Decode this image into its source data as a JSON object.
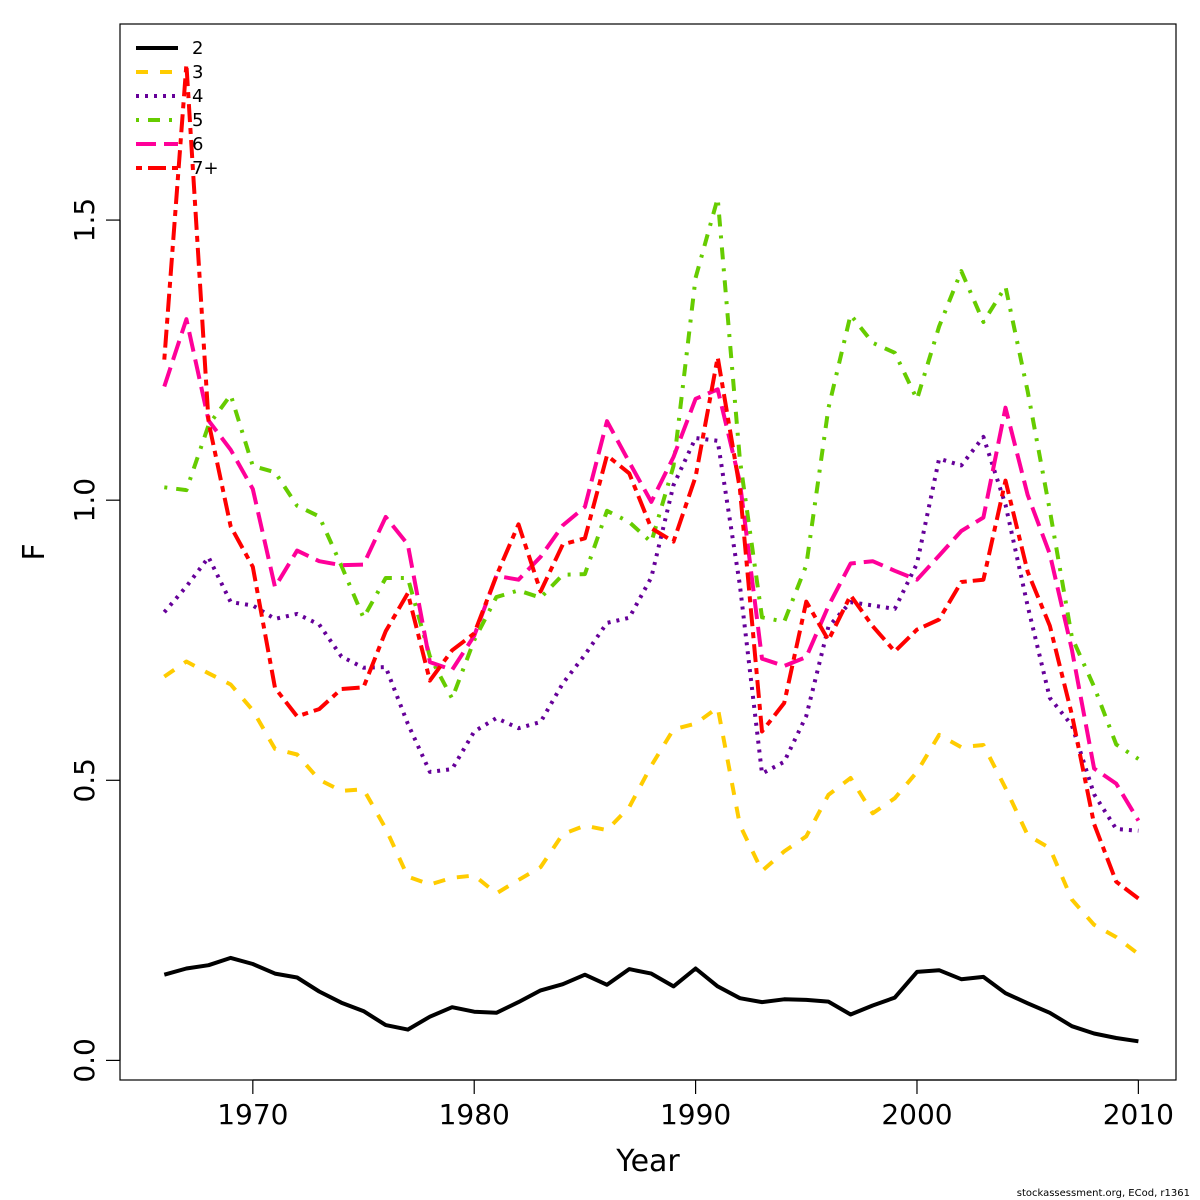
{
  "chart_data": {
    "type": "line",
    "title": "",
    "xlabel": "Year",
    "ylabel": "F",
    "xlim": [
      1964,
      2011.7
    ],
    "ylim": [
      -0.035,
      1.85
    ],
    "x_ticks": [
      1970,
      1980,
      1990,
      2000,
      2010
    ],
    "y_ticks": [
      0.0,
      0.5,
      1.0,
      1.5
    ],
    "x_tick_labels": [
      "1970",
      "1980",
      "1990",
      "2000",
      "2010"
    ],
    "y_tick_labels": [
      "0.0",
      "0.5",
      "1.0",
      "1.5"
    ],
    "grid": false,
    "legend_position": "top-left",
    "x": [
      1966,
      1967,
      1968,
      1969,
      1970,
      1971,
      1972,
      1973,
      1974,
      1975,
      1976,
      1977,
      1978,
      1979,
      1980,
      1981,
      1982,
      1983,
      1984,
      1985,
      1986,
      1987,
      1988,
      1989,
      1990,
      1991,
      1992,
      1993,
      1994,
      1995,
      1996,
      1997,
      1998,
      1999,
      2000,
      2001,
      2002,
      2003,
      2004,
      2005,
      2006,
      2007,
      2008,
      2009,
      2010
    ],
    "series": [
      {
        "name": "2",
        "color": "#000000",
        "dash": "solid",
        "values": [
          0.153,
          0.164,
          0.17,
          0.183,
          0.172,
          0.155,
          0.148,
          0.123,
          0.103,
          0.088,
          0.063,
          0.055,
          0.078,
          0.095,
          0.087,
          0.085,
          0.104,
          0.125,
          0.136,
          0.153,
          0.135,
          0.163,
          0.155,
          0.132,
          0.164,
          0.132,
          0.111,
          0.104,
          0.109,
          0.108,
          0.105,
          0.082,
          0.098,
          0.112,
          0.158,
          0.161,
          0.145,
          0.149,
          0.12,
          0.102,
          0.085,
          0.061,
          0.048,
          0.04,
          0.034
        ]
      },
      {
        "name": "3",
        "color": "#ffcc00",
        "dash": "dashed",
        "values": [
          0.685,
          0.712,
          0.691,
          0.671,
          0.625,
          0.556,
          0.546,
          0.501,
          0.481,
          0.484,
          0.414,
          0.328,
          0.314,
          0.326,
          0.33,
          0.298,
          0.322,
          0.345,
          0.404,
          0.419,
          0.411,
          0.452,
          0.526,
          0.591,
          0.601,
          0.63,
          0.42,
          0.338,
          0.373,
          0.4,
          0.474,
          0.504,
          0.441,
          0.468,
          0.515,
          0.581,
          0.559,
          0.563,
          0.486,
          0.402,
          0.379,
          0.287,
          0.242,
          0.22,
          0.19
        ]
      },
      {
        "name": "4",
        "color": "#660099",
        "dash": "dotted",
        "values": [
          0.8,
          0.846,
          0.898,
          0.818,
          0.812,
          0.788,
          0.797,
          0.778,
          0.721,
          0.701,
          0.702,
          0.601,
          0.515,
          0.52,
          0.587,
          0.611,
          0.593,
          0.604,
          0.673,
          0.724,
          0.781,
          0.79,
          0.862,
          1.027,
          1.111,
          1.106,
          0.848,
          0.512,
          0.533,
          0.615,
          0.774,
          0.818,
          0.812,
          0.806,
          0.887,
          1.074,
          1.062,
          1.113,
          0.992,
          0.811,
          0.647,
          0.598,
          0.475,
          0.413,
          0.41
        ]
      },
      {
        "name": "5",
        "color": "#66cc00",
        "dash": "dashdot",
        "values": [
          1.023,
          1.018,
          1.134,
          1.188,
          1.061,
          1.05,
          0.99,
          0.971,
          0.883,
          0.79,
          0.861,
          0.861,
          0.721,
          0.646,
          0.75,
          0.827,
          0.839,
          0.826,
          0.867,
          0.868,
          0.981,
          0.961,
          0.925,
          1.061,
          1.397,
          1.539,
          1.072,
          0.791,
          0.783,
          0.884,
          1.164,
          1.331,
          1.281,
          1.263,
          1.18,
          1.31,
          1.409,
          1.318,
          1.381,
          1.194,
          0.982,
          0.755,
          0.667,
          0.564,
          0.538
        ]
      },
      {
        "name": "6",
        "color": "#ff0099",
        "dash": "longdash",
        "values": [
          1.203,
          1.323,
          1.142,
          1.09,
          1.02,
          0.845,
          0.91,
          0.891,
          0.884,
          0.885,
          0.97,
          0.921,
          0.711,
          0.697,
          0.758,
          0.865,
          0.858,
          0.899,
          0.955,
          0.988,
          1.141,
          1.068,
          0.997,
          1.077,
          1.181,
          1.198,
          1.032,
          0.717,
          0.704,
          0.72,
          0.811,
          0.887,
          0.891,
          0.874,
          0.858,
          0.901,
          0.945,
          0.969,
          1.165,
          1.009,
          0.904,
          0.733,
          0.521,
          0.494,
          0.428
        ]
      },
      {
        "name": "7+",
        "color": "#ff0000",
        "dash": "twodash",
        "values": [
          1.251,
          1.778,
          1.139,
          0.953,
          0.881,
          0.665,
          0.614,
          0.627,
          0.663,
          0.666,
          0.766,
          0.834,
          0.678,
          0.732,
          0.762,
          0.865,
          0.957,
          0.837,
          0.921,
          0.932,
          1.08,
          1.048,
          0.95,
          0.926,
          1.042,
          1.255,
          1.02,
          0.587,
          0.638,
          0.819,
          0.75,
          0.83,
          0.775,
          0.73,
          0.769,
          0.787,
          0.854,
          0.858,
          1.035,
          0.872,
          0.776,
          0.617,
          0.422,
          0.319,
          0.289
        ]
      }
    ],
    "footer": "stockassessment.org, ECod, r1361"
  }
}
